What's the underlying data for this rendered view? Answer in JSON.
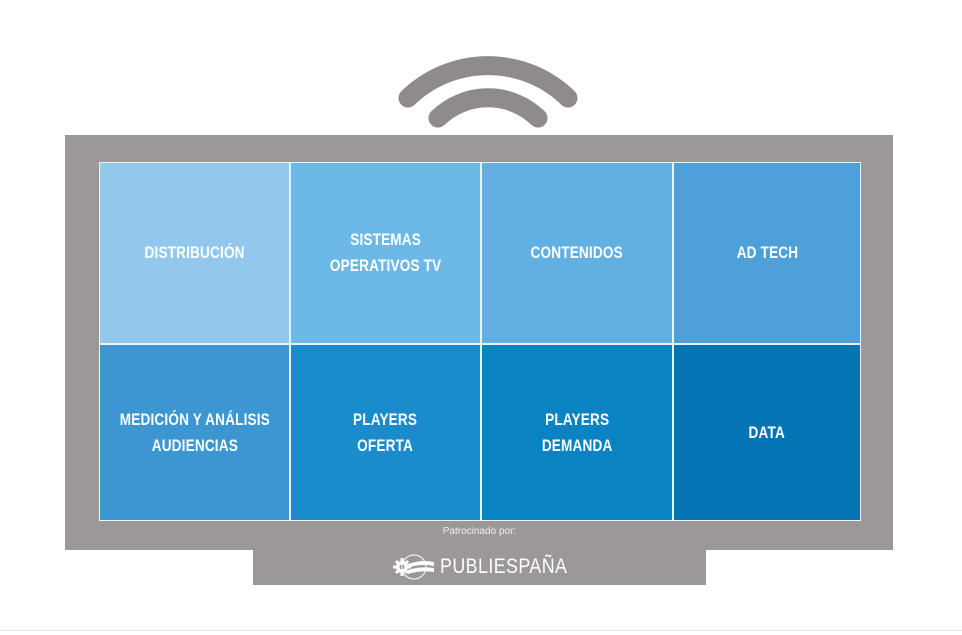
{
  "tiles": [
    {
      "label": "DISTRIBUCIÓN",
      "color": "#93c8ec"
    },
    {
      "label": "SISTEMAS\nOPERATIVOS TV",
      "color": "#6cb9e8"
    },
    {
      "label": "CONTENIDOS",
      "color": "#62afe2"
    },
    {
      "label": "AD TECH",
      "color": "#4da0da"
    },
    {
      "label": "MEDICIÓN Y ANÁLISIS\nAUDIENCIAS",
      "color": "#3b96d2"
    },
    {
      "label": "PLAYERS\nOFERTA",
      "color": "#1a8ccb"
    },
    {
      "label": "PLAYERS\nDEMANDA",
      "color": "#0a83c3"
    },
    {
      "label": "DATA",
      "color": "#0574b4"
    }
  ],
  "sponsor": {
    "label": "Patrocinado por:",
    "logo_text": "PUBLIESPAÑA",
    "logo_icon": "gear-flag-icon"
  },
  "colors": {
    "frame": "#9c9897",
    "wifi": "#8f8b8a"
  }
}
